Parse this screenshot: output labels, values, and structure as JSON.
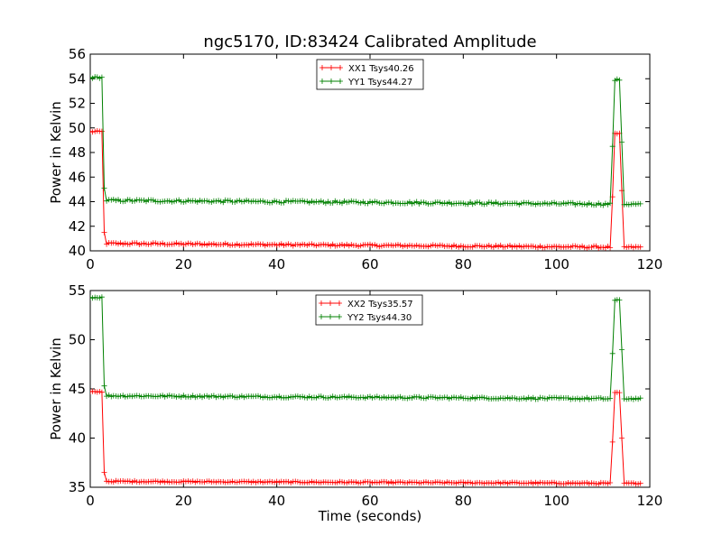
{
  "chart_data": [
    {
      "type": "line",
      "title": "ngc5170, ID:83424 Calibrated Amplitude",
      "xlabel": "",
      "ylabel": "Power in Kelvin",
      "xlim": [
        0,
        120
      ],
      "ylim": [
        40,
        56
      ],
      "xticks": [
        0,
        20,
        40,
        60,
        80,
        100,
        120
      ],
      "yticks": [
        40,
        42,
        44,
        46,
        48,
        50,
        52,
        54,
        56
      ],
      "legend_position": "top-center",
      "grid": false,
      "series": [
        {
          "name": "XX1 Tsys40.26",
          "color": "#ff0000",
          "on_level": 49.7,
          "base_start": 40.6,
          "base_end": 40.3,
          "transition_in": 41.5,
          "transition_out": 44.4,
          "x_start": 0,
          "on_end": 2.5,
          "base_begin": 3.5,
          "base_stop": 111.5,
          "on2_begin": 112.5,
          "on2_end": 113.5,
          "tail_begin": 114.5,
          "x_end": 118,
          "on2_level": 49.5,
          "noise": 0.12
        },
        {
          "name": "YY1 Tsys44.27",
          "color": "#008000",
          "on_level": 54.1,
          "base_start": 44.1,
          "base_end": 43.8,
          "transition_in": 45.1,
          "transition_out": 48.5,
          "x_start": 0,
          "on_end": 2.5,
          "base_begin": 3.5,
          "base_stop": 111.5,
          "on2_begin": 112.5,
          "on2_end": 113.5,
          "tail_begin": 114.5,
          "x_end": 118,
          "on2_level": 53.9,
          "noise": 0.14
        }
      ]
    },
    {
      "type": "line",
      "title": "",
      "xlabel": "Time (seconds)",
      "ylabel": "Power in Kelvin",
      "xlim": [
        0,
        120
      ],
      "ylim": [
        35,
        55
      ],
      "xticks": [
        0,
        20,
        40,
        60,
        80,
        100,
        120
      ],
      "yticks": [
        35,
        40,
        45,
        50,
        55
      ],
      "legend_position": "top-center",
      "grid": false,
      "series": [
        {
          "name": "XX2 Tsys35.57",
          "color": "#ff0000",
          "on_level": 44.7,
          "base_start": 35.6,
          "base_end": 35.4,
          "transition_in": 36.5,
          "transition_out": 39.6,
          "x_start": 0,
          "on_end": 2.5,
          "base_begin": 3.5,
          "base_stop": 111.5,
          "on2_begin": 112.5,
          "on2_end": 113.5,
          "tail_begin": 114.5,
          "x_end": 118,
          "on2_level": 44.6,
          "noise": 0.1
        },
        {
          "name": "YY2 Tsys44.30",
          "color": "#008000",
          "on_level": 54.3,
          "base_start": 44.3,
          "base_end": 44.0,
          "transition_in": 45.3,
          "transition_out": 48.6,
          "x_start": 0,
          "on_end": 2.5,
          "base_begin": 3.5,
          "base_stop": 111.5,
          "on2_begin": 112.5,
          "on2_end": 113.5,
          "tail_begin": 114.5,
          "x_end": 118,
          "on2_level": 54.0,
          "noise": 0.14
        }
      ]
    }
  ]
}
